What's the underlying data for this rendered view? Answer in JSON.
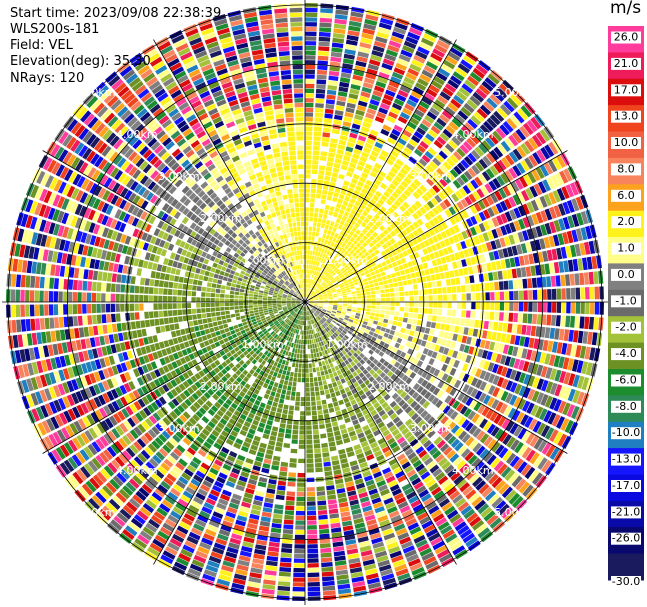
{
  "header": {
    "start_time": "Start time: 2023/09/08 22:38:39",
    "instrument": "WLS200s-181",
    "field": "Field: VEL",
    "elevation": "Elevation(deg): 35.30",
    "nrays": "NRays: 120"
  },
  "colorbar": {
    "unit": "m/s",
    "levels": [
      {
        "label": "26.0",
        "color": "#ff3c9c"
      },
      {
        "label": "21.0",
        "color": "#ee1c5a"
      },
      {
        "label": "17.0",
        "color": "#dc0d0d"
      },
      {
        "label": "13.0",
        "color": "#f0441f"
      },
      {
        "label": "10.0",
        "color": "#f26242"
      },
      {
        "label": "8.0",
        "color": "#f7845c"
      },
      {
        "label": "6.0",
        "color": "#fca21d"
      },
      {
        "label": "2.0",
        "color": "#fff21b"
      },
      {
        "label": "1.0",
        "color": "#fffe88"
      },
      {
        "label": "0.0",
        "color": "#808080"
      },
      {
        "label": "-1.0",
        "color": "#6b6b6b"
      },
      {
        "label": "-2.0",
        "color": "#a3c239"
      },
      {
        "label": "-4.0",
        "color": "#6d9123"
      },
      {
        "label": "-6.0",
        "color": "#1d8c2e"
      },
      {
        "label": "-8.0",
        "color": "#2e8b57"
      },
      {
        "label": "-10.0",
        "color": "#1f7fc0"
      },
      {
        "label": "-13.0",
        "color": "#1515ff"
      },
      {
        "label": "-17.0",
        "color": "#0a0ae0"
      },
      {
        "label": "-21.0",
        "color": "#0a0aa8"
      },
      {
        "label": "-26.0",
        "color": "#08086e"
      },
      {
        "label": "-30.0",
        "color": "#1a1a5e"
      }
    ]
  },
  "chart_data": {
    "type": "heatmap",
    "projection": "polar (PPI)",
    "field": "VEL",
    "elevation_deg": 35.3,
    "nrays": 120,
    "range_rings_km": [
      1.0,
      2.0,
      3.0,
      4.0,
      5.0
    ],
    "ring_labels": [
      "1.00km",
      "2.00km",
      "3.00km",
      "4.00km",
      "5.00km"
    ],
    "max_range_km": 5.1,
    "azimuth_lines_deg": [
      0,
      30,
      60,
      90,
      120,
      150,
      180,
      210,
      240,
      270,
      300,
      330
    ],
    "ring_label_azimuths_deg": [
      45,
      135,
      225,
      315
    ],
    "velocity_range_ms": [
      -30.0,
      26.0
    ],
    "pattern": "Near-field (< ~3 km): positive velocities (yellow/orange) toward north and east, near-zero (gray) along the west–east axis, negative (green) toward south and southwest; beyond ~3 km: noisy random values spanning the whole scale"
  }
}
